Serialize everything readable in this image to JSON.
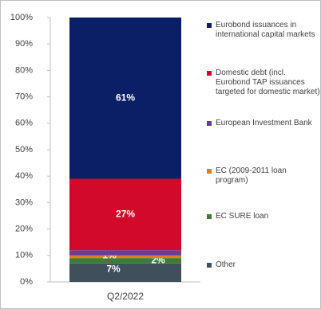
{
  "chart_data": {
    "type": "stacked_bar",
    "categories": [
      "Q2/2022"
    ],
    "series": [
      {
        "name": "Other",
        "color": "#3f4f5b",
        "values": [
          7
        ],
        "value_labels": [
          "7%"
        ]
      },
      {
        "name": "EC SURE loan",
        "color": "#3e7a3a",
        "values": [
          2
        ],
        "value_labels": [
          "2%"
        ]
      },
      {
        "name": "EC (2009-2011 loan program)",
        "color": "#e57a1e",
        "values": [
          1
        ],
        "value_labels": [
          "1%"
        ]
      },
      {
        "name": "European Investment Bank",
        "color": "#6b3d8e",
        "values": [
          2
        ],
        "value_labels": [
          "2%"
        ]
      },
      {
        "name": "Domestic debt (incl. Eurobond TAP issuances targeted for domestic market)",
        "color": "#d2092a",
        "values": [
          27
        ],
        "value_labels": [
          "27%"
        ]
      },
      {
        "name": "Eurobond issuances in international capital markets",
        "color": "#0b1f66",
        "values": [
          61
        ],
        "value_labels": [
          "61%"
        ]
      }
    ],
    "ylim": [
      0,
      100
    ],
    "yticks": [
      {
        "value": 0,
        "label": "0%"
      },
      {
        "value": 10,
        "label": "10%"
      },
      {
        "value": 20,
        "label": "20%"
      },
      {
        "value": 30,
        "label": "30%"
      },
      {
        "value": 40,
        "label": "40%"
      },
      {
        "value": 50,
        "label": "50%"
      },
      {
        "value": 60,
        "label": "60%"
      },
      {
        "value": 70,
        "label": "70%"
      },
      {
        "value": 80,
        "label": "80%"
      },
      {
        "value": 90,
        "label": "90%"
      },
      {
        "value": 100,
        "label": "100%"
      }
    ],
    "grid": false
  }
}
